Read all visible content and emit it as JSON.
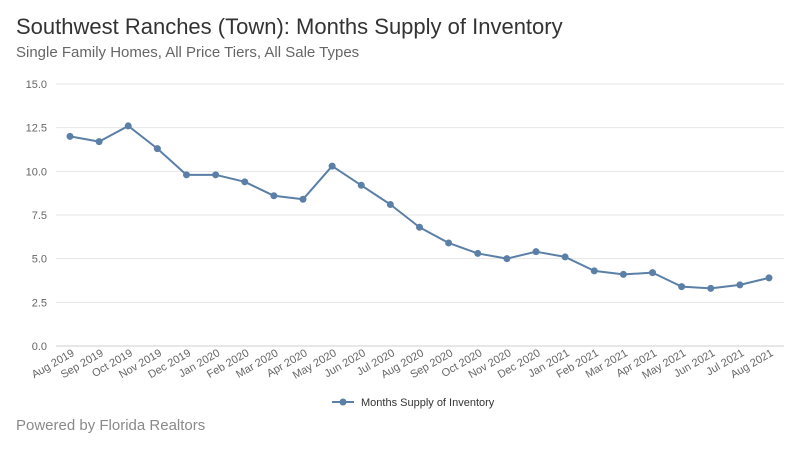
{
  "header": {
    "title": "Southwest Ranches (Town): Months Supply of Inventory",
    "subtitle": "Single Family Homes, All Price Tiers, All Sale Types"
  },
  "footer": {
    "credit": "Powered by Florida Realtors"
  },
  "colors": {
    "series": "#5b7fa6",
    "grid": "#e6e6e6",
    "axis_text": "#666666"
  },
  "chart_data": {
    "type": "line",
    "title": "Southwest Ranches (Town): Months Supply of Inventory",
    "subtitle": "Single Family Homes, All Price Tiers, All Sale Types",
    "xlabel": "",
    "ylabel": "",
    "ylim": [
      0,
      15
    ],
    "yticks": [
      "0.0",
      "2.5",
      "5.0",
      "7.5",
      "10.0",
      "12.5",
      "15.0"
    ],
    "grid": true,
    "legend_position": "bottom-center",
    "categories": [
      "Aug 2019",
      "Sep 2019",
      "Oct 2019",
      "Nov 2019",
      "Dec 2019",
      "Jan 2020",
      "Feb 2020",
      "Mar 2020",
      "Apr 2020",
      "May 2020",
      "Jun 2020",
      "Jul 2020",
      "Aug 2020",
      "Sep 2020",
      "Oct 2020",
      "Nov 2020",
      "Dec 2020",
      "Jan 2021",
      "Feb 2021",
      "Mar 2021",
      "Apr 2021",
      "May 2021",
      "Jun 2021",
      "Jul 2021",
      "Aug 2021"
    ],
    "series": [
      {
        "name": "Months Supply of Inventory",
        "values": [
          12.0,
          11.7,
          12.6,
          11.3,
          9.8,
          9.8,
          9.4,
          8.6,
          8.4,
          10.3,
          9.2,
          8.1,
          6.8,
          5.9,
          5.3,
          5.0,
          5.4,
          5.1,
          4.3,
          4.1,
          4.2,
          3.4,
          3.3,
          3.5,
          3.9
        ]
      }
    ]
  }
}
